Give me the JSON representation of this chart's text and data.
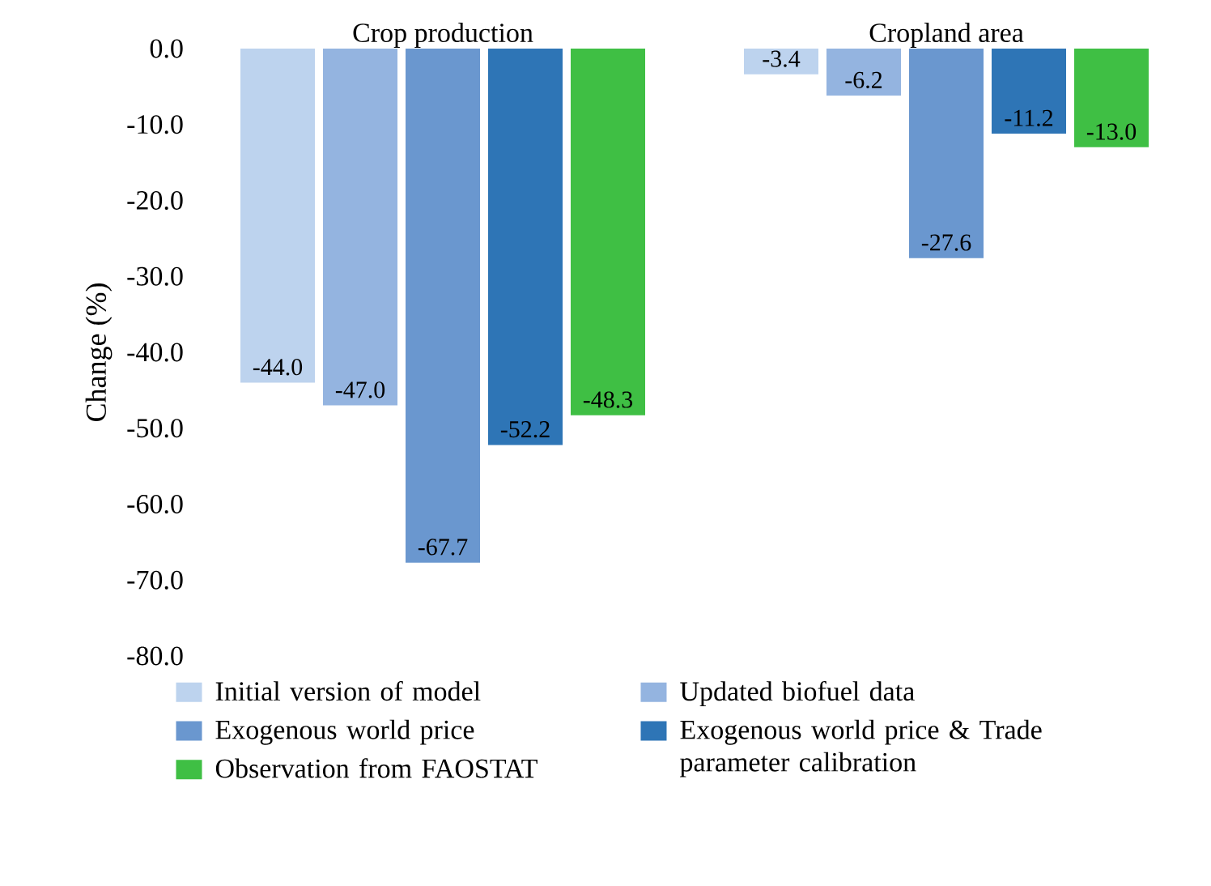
{
  "chart_data": {
    "type": "bar",
    "ylabel": "Change (%)",
    "categories": [
      "Crop production",
      "Cropland area"
    ],
    "series": [
      {
        "name": "Initial version of model",
        "color": "#bdd3ee",
        "values": [
          -44.0,
          -3.4
        ],
        "value_labels": [
          "-44.0",
          "-3.4"
        ]
      },
      {
        "name": "Updated biofuel data",
        "color": "#94b4e0",
        "values": [
          -47.0,
          -6.2
        ],
        "value_labels": [
          "-47.0",
          "-6.2"
        ]
      },
      {
        "name": "Exogenous world price",
        "color": "#6a97cf",
        "values": [
          -67.7,
          -27.6
        ],
        "value_labels": [
          "-67.7",
          "-27.6"
        ]
      },
      {
        "name": "Exogenous world price & Trade parameter calibration",
        "color": "#2e75b6",
        "values": [
          -52.2,
          -11.2
        ],
        "value_labels": [
          "-52.2",
          "-11.2"
        ]
      },
      {
        "name": "Observation from FAOSTAT",
        "color": "#3fbf44",
        "values": [
          -48.3,
          -13.0
        ],
        "value_labels": [
          "-48.3",
          "-13.0"
        ]
      }
    ],
    "ylim": [
      -80,
      0
    ],
    "yticks": [
      {
        "value": -80,
        "label": "-80.0"
      },
      {
        "value": -70,
        "label": "-70.0"
      },
      {
        "value": -60,
        "label": "-60.0"
      },
      {
        "value": -50,
        "label": "-50.0"
      },
      {
        "value": -40,
        "label": "-40.0"
      },
      {
        "value": -30,
        "label": "-30.0"
      },
      {
        "value": -20,
        "label": "-20.0"
      },
      {
        "value": -10,
        "label": "-10.0"
      },
      {
        "value": 0,
        "label": "0.0"
      }
    ],
    "legend": "bottom",
    "grid": false
  }
}
